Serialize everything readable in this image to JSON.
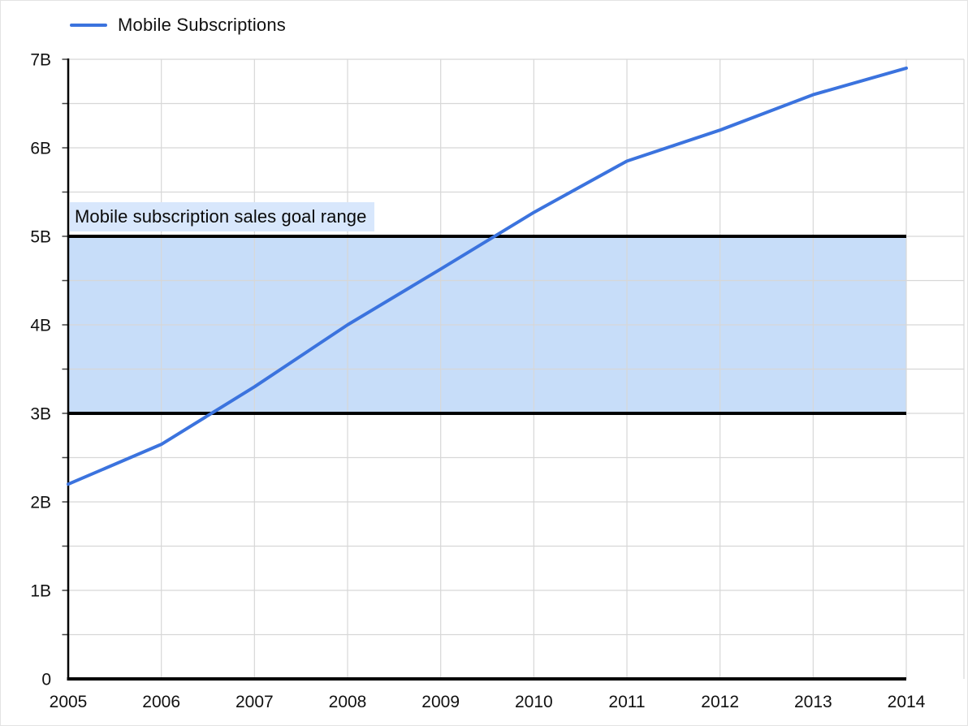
{
  "legend": {
    "items": [
      {
        "label": "Mobile Subscriptions",
        "color": "#3b73de"
      }
    ]
  },
  "colors": {
    "line": "#3b73de",
    "band_fill": "#c7ddf9",
    "band_label_bg": "#d8e7fc",
    "band_border": "#000000",
    "gridline": "#d7d7d7",
    "axis": "#000000",
    "tick": "#424242",
    "text": "#111111"
  },
  "chart_data": {
    "type": "line",
    "title": "",
    "xlabel": "",
    "ylabel": "",
    "x_categories": [
      "2005",
      "2006",
      "2007",
      "2008",
      "2009",
      "2010",
      "2011",
      "2012",
      "2013",
      "2014"
    ],
    "series": [
      {
        "name": "Mobile Subscriptions",
        "color": "#3b73de",
        "values": [
          2.2,
          2.65,
          3.3,
          4.0,
          4.63,
          5.27,
          5.85,
          6.2,
          6.6,
          6.9
        ]
      }
    ],
    "y_axis": {
      "tick_labels": [
        "0",
        "1B",
        "2B",
        "3B",
        "4B",
        "5B",
        "6B",
        "7B"
      ],
      "lim": [
        0,
        7
      ],
      "minor_step": 0.5
    },
    "band": {
      "from": 3,
      "to": 5,
      "label": "Mobile subscription sales goal range"
    },
    "grid": true,
    "legend_position": "top-left"
  }
}
